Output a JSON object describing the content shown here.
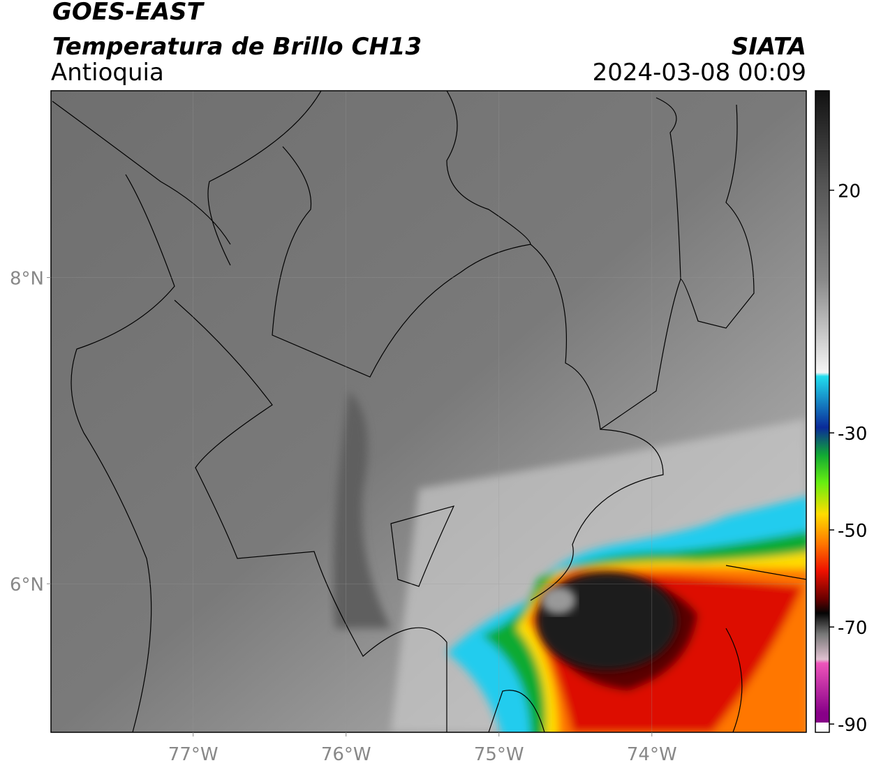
{
  "chart_data": {
    "type": "map",
    "title": "GOES-EAST",
    "subtitle": "Temperatura de Brillo CH13",
    "region": "Antioquia",
    "source": "SIATA",
    "timestamp": "2024-03-08 00:09",
    "xlim": [
      -77.93,
      -72.99
    ],
    "ylim": [
      5.03,
      9.22
    ],
    "xticks": [
      {
        "value": -77,
        "label": "77°W"
      },
      {
        "value": -76,
        "label": "76°W"
      },
      {
        "value": -75,
        "label": "75°W"
      },
      {
        "value": -74,
        "label": "74°W"
      }
    ],
    "yticks": [
      {
        "value": 6,
        "label": "6°N"
      },
      {
        "value": 8,
        "label": "8°N"
      }
    ],
    "grid": true,
    "colorbar": {
      "lim": [
        -91.7,
        40.5
      ],
      "ticks": [
        20,
        -30,
        -50,
        -70,
        -90
      ]
    }
  }
}
